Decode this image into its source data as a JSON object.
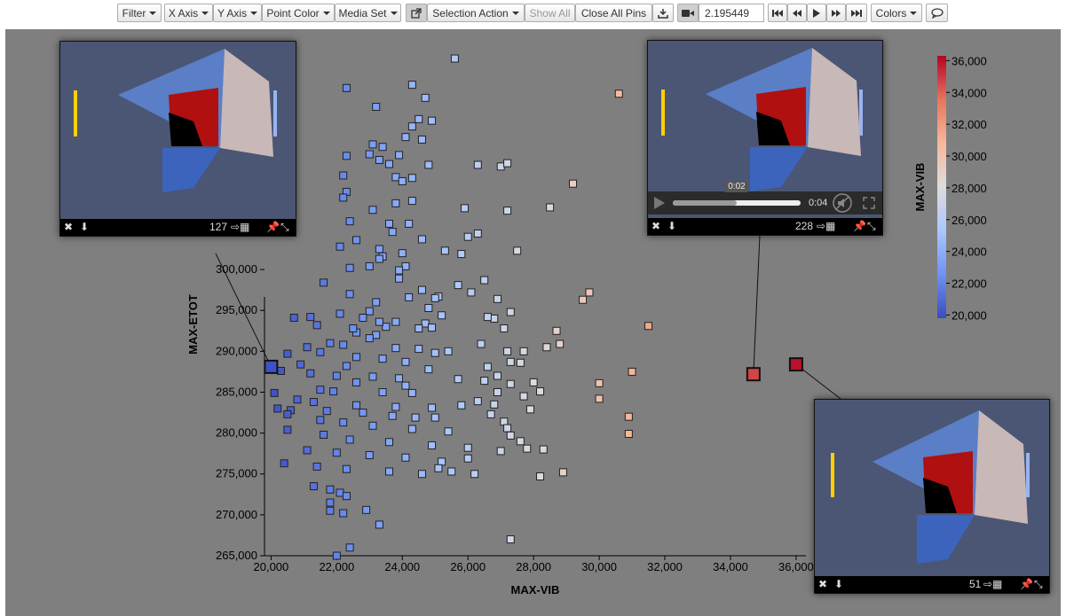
{
  "toolbar": {
    "filter": "Filter",
    "x_axis": "X Axis",
    "y_axis": "Y Axis",
    "point_color": "Point Color",
    "media_set": "Media Set",
    "selection_action": "Selection Action",
    "show_all": "Show All",
    "close_all_pins": "Close All Pins",
    "time_value": "2.195449",
    "colors": "Colors",
    "icons": {
      "external": "external-link-icon",
      "download": "download-icon",
      "camera": "video-camera-icon",
      "first": "skip-first-icon",
      "prev": "step-back-icon",
      "play": "play-icon",
      "next": "step-forward-icon",
      "last": "skip-last-icon",
      "comment": "comment-icon"
    }
  },
  "pins": [
    {
      "label": "127"
    },
    {
      "label": "228",
      "video": {
        "time_tooltip": "0:02",
        "elapsed": "0:04",
        "progress": 0.5
      }
    },
    {
      "label": "51"
    }
  ],
  "chart_data": {
    "type": "scatter",
    "xlabel": "MAX-VIB",
    "ylabel": "MAX-ETOT",
    "xlim": [
      19800,
      36300
    ],
    "ylim": [
      265000,
      327000
    ],
    "xticks": [
      "20,000",
      "22,000",
      "24,000",
      "26,000",
      "28,000",
      "30,000",
      "32,000",
      "34,000",
      "36,000"
    ],
    "yticks": [
      "265,000",
      "270,000",
      "275,000",
      "280,000",
      "285,000",
      "290,000",
      "295,000",
      "300,000"
    ],
    "colorbar": {
      "label": "MAX-VIB",
      "min": 19800,
      "max": 36300,
      "ticks": [
        "36,000",
        "34,000",
        "32,000",
        "30,000",
        "28,000",
        "26,000",
        "24,000",
        "22,000",
        "20,000"
      ],
      "colors": [
        "#3b4cc0",
        "#6f92f3",
        "#aac7fd",
        "#dddcdc",
        "#f7b89c",
        "#e7745b",
        "#b40426"
      ]
    },
    "points": [
      [
        25600,
        325800
      ],
      [
        24300,
        322600
      ],
      [
        22300,
        322200
      ],
      [
        24700,
        321000
      ],
      [
        23200,
        319900
      ],
      [
        24500,
        318400
      ],
      [
        24900,
        318200
      ],
      [
        24300,
        317500
      ],
      [
        24100,
        316200
      ],
      [
        24600,
        315900
      ],
      [
        23100,
        315300
      ],
      [
        23400,
        315000
      ],
      [
        23000,
        314100
      ],
      [
        23900,
        314000
      ],
      [
        23300,
        313400
      ],
      [
        23600,
        312900
      ],
      [
        24800,
        312800
      ],
      [
        26300,
        312800
      ],
      [
        27000,
        312600
      ],
      [
        27200,
        313000
      ],
      [
        22200,
        311500
      ],
      [
        23800,
        311300
      ],
      [
        24300,
        311200
      ],
      [
        24000,
        310800
      ],
      [
        22300,
        309500
      ],
      [
        22200,
        308800
      ],
      [
        24300,
        308400
      ],
      [
        23800,
        308100
      ],
      [
        23100,
        307300
      ],
      [
        25900,
        307500
      ],
      [
        27200,
        307200
      ],
      [
        23600,
        305600
      ],
      [
        24200,
        305600
      ],
      [
        26300,
        304400
      ],
      [
        22100,
        302800
      ],
      [
        23300,
        302500
      ],
      [
        25300,
        302300
      ],
      [
        24000,
        302000
      ],
      [
        23400,
        301600
      ],
      [
        25800,
        301900
      ],
      [
        23000,
        300400
      ],
      [
        22400,
        300200
      ],
      [
        24100,
        300400
      ],
      [
        21600,
        298400
      ],
      [
        23900,
        298900
      ],
      [
        22400,
        297000
      ],
      [
        26100,
        297200
      ],
      [
        24200,
        296600
      ],
      [
        25100,
        296700
      ],
      [
        23200,
        296000
      ],
      [
        24800,
        295300
      ],
      [
        22100,
        294600
      ],
      [
        23000,
        294900
      ],
      [
        20700,
        294100
      ],
      [
        21200,
        294200
      ],
      [
        22800,
        294100
      ],
      [
        25200,
        294400
      ],
      [
        26800,
        294000
      ],
      [
        23800,
        293600
      ],
      [
        24700,
        293400
      ],
      [
        21400,
        293200
      ],
      [
        23500,
        293000
      ],
      [
        24500,
        292800
      ],
      [
        24900,
        292900
      ],
      [
        22600,
        292300
      ],
      [
        23200,
        292000
      ],
      [
        23000,
        291600
      ],
      [
        21800,
        291000
      ],
      [
        22200,
        290800
      ],
      [
        23800,
        290400
      ],
      [
        24500,
        290300
      ],
      [
        25400,
        290000
      ],
      [
        25000,
        289800
      ],
      [
        22600,
        289300
      ],
      [
        23400,
        289100
      ],
      [
        24100,
        288700
      ],
      [
        22300,
        288200
      ],
      [
        24800,
        287800
      ],
      [
        26600,
        288100
      ],
      [
        21200,
        287300
      ],
      [
        22000,
        287000
      ],
      [
        23100,
        286900
      ],
      [
        23900,
        286700
      ],
      [
        25700,
        286600
      ],
      [
        22600,
        286200
      ],
      [
        24100,
        285800
      ],
      [
        21500,
        285300
      ],
      [
        21900,
        285100
      ],
      [
        23400,
        285000
      ],
      [
        24300,
        284900
      ],
      [
        26900,
        285000
      ],
      [
        20800,
        284100
      ],
      [
        21300,
        283800
      ],
      [
        22600,
        283400
      ],
      [
        23800,
        283200
      ],
      [
        24900,
        283100
      ],
      [
        20600,
        282800
      ],
      [
        21700,
        282700
      ],
      [
        22800,
        282500
      ],
      [
        23700,
        282100
      ],
      [
        24400,
        281900
      ],
      [
        25000,
        281900
      ],
      [
        21500,
        281600
      ],
      [
        22200,
        281300
      ],
      [
        23100,
        280900
      ],
      [
        24300,
        280500
      ],
      [
        25400,
        280200
      ],
      [
        20500,
        280400
      ],
      [
        21600,
        279800
      ],
      [
        22400,
        279200
      ],
      [
        23600,
        278900
      ],
      [
        24900,
        278500
      ],
      [
        26000,
        278200
      ],
      [
        21100,
        277900
      ],
      [
        22000,
        277600
      ],
      [
        23000,
        277300
      ],
      [
        24100,
        277000
      ],
      [
        25200,
        276500
      ],
      [
        20400,
        276300
      ],
      [
        21400,
        275900
      ],
      [
        22300,
        275600
      ],
      [
        23600,
        275300
      ],
      [
        24600,
        275000
      ],
      [
        21300,
        273500
      ],
      [
        21800,
        273100
      ],
      [
        22100,
        272700
      ],
      [
        22300,
        272300
      ],
      [
        21800,
        271500
      ],
      [
        21800,
        270500
      ],
      [
        22200,
        270200
      ],
      [
        22400,
        266000
      ],
      [
        22000,
        265000
      ],
      [
        30600,
        321500
      ],
      [
        29200,
        310500
      ],
      [
        28500,
        307600
      ],
      [
        29700,
        297200
      ],
      [
        29500,
        296300
      ],
      [
        31500,
        293100
      ],
      [
        28700,
        292500
      ],
      [
        28800,
        290900
      ],
      [
        28400,
        290500
      ],
      [
        30000,
        286100
      ],
      [
        31000,
        287500
      ],
      [
        30000,
        284200
      ],
      [
        30900,
        282000
      ],
      [
        28300,
        278000
      ],
      [
        30900,
        279900
      ],
      [
        28200,
        274700
      ],
      [
        28900,
        275200
      ],
      [
        27500,
        302300
      ],
      [
        27300,
        294800
      ],
      [
        26900,
        296400
      ],
      [
        26600,
        294200
      ],
      [
        27100,
        292800
      ],
      [
        26400,
        290900
      ],
      [
        27200,
        290000
      ],
      [
        27700,
        290000
      ],
      [
        27300,
        288700
      ],
      [
        27600,
        288600
      ],
      [
        26900,
        287000
      ],
      [
        26500,
        286400
      ],
      [
        27300,
        286000
      ],
      [
        28000,
        286200
      ],
      [
        28200,
        285100
      ],
      [
        27700,
        284500
      ],
      [
        26800,
        283500
      ],
      [
        27900,
        282900
      ],
      [
        26700,
        282300
      ],
      [
        27100,
        281400
      ],
      [
        27200,
        280600
      ],
      [
        27300,
        279700
      ],
      [
        27600,
        279000
      ],
      [
        27800,
        278100
      ],
      [
        27000,
        277800
      ],
      [
        26000,
        276900
      ],
      [
        25100,
        275700
      ],
      [
        25500,
        275300
      ],
      [
        26200,
        275000
      ],
      [
        27300,
        267000
      ],
      [
        23300,
        268800
      ],
      [
        22900,
        270600
      ],
      [
        26300,
        283900
      ],
      [
        25800,
        283400
      ],
      [
        24600,
        297500
      ],
      [
        25000,
        296500
      ],
      [
        23900,
        299900
      ],
      [
        23300,
        301300
      ],
      [
        22600,
        303600
      ],
      [
        23700,
        304600
      ],
      [
        24600,
        303700
      ],
      [
        26000,
        304000
      ],
      [
        22300,
        313900
      ],
      [
        22400,
        305900
      ],
      [
        25700,
        298100
      ],
      [
        26500,
        298700
      ],
      [
        23300,
        293600
      ],
      [
        22500,
        292800
      ],
      [
        21500,
        289900
      ],
      [
        21100,
        290500
      ],
      [
        20500,
        289700
      ],
      [
        20900,
        288400
      ],
      [
        20300,
        287600
      ],
      [
        20100,
        284900
      ],
      [
        20200,
        283000
      ],
      [
        20500,
        282300
      ],
      [
        34700,
        287200
      ]
    ],
    "highlighted": [
      {
        "x": 20000,
        "y": 288100
      },
      {
        "x": 34700,
        "y": 287200
      },
      {
        "x": 36000,
        "y": 288400
      }
    ]
  }
}
